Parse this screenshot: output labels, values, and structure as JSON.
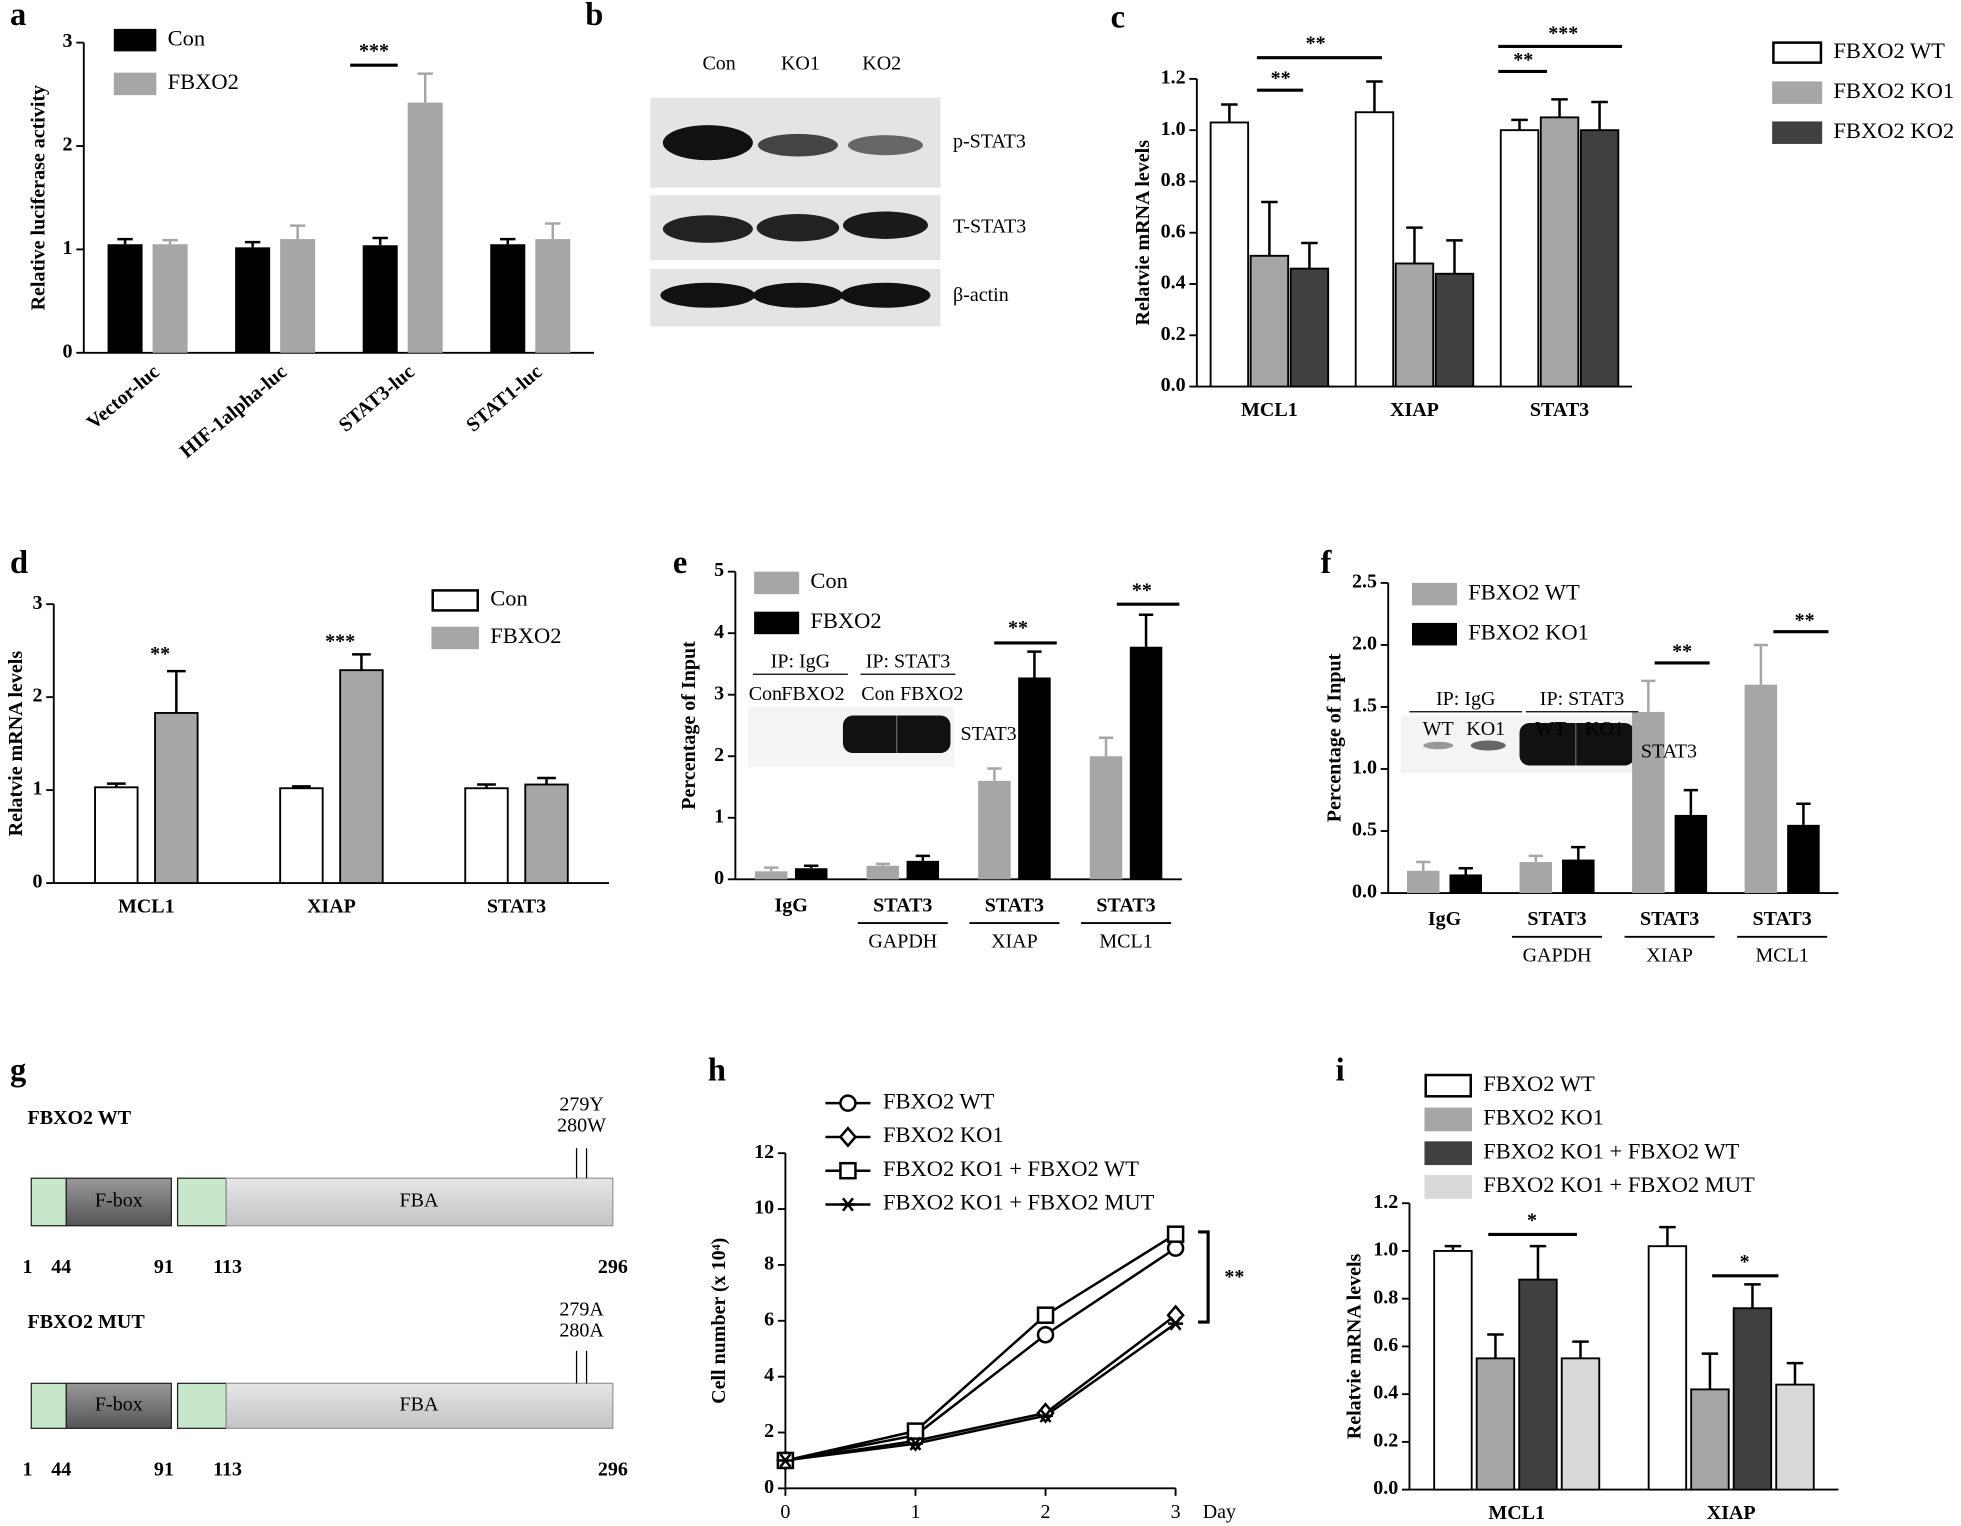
{
  "chart_data": [
    {
      "type": "bar",
      "panel": "a",
      "ylabel": "Relative luciferase activity",
      "categories": [
        "Vector-luc",
        "HIF-1alpha-luc",
        "STAT3-luc",
        "STAT1-luc"
      ],
      "series": [
        {
          "name": "Con",
          "color": "#000000",
          "values": [
            1.05,
            1.02,
            1.04,
            1.05
          ],
          "errors": [
            0.05,
            0.05,
            0.07,
            0.05
          ]
        },
        {
          "name": "FBXO2",
          "color": "#a6a6a6",
          "values": [
            1.05,
            1.1,
            2.42,
            1.1
          ],
          "errors": [
            0.04,
            0.13,
            0.28,
            0.15
          ]
        }
      ],
      "ylim": [
        0,
        3
      ],
      "yticks": [
        0,
        1,
        2,
        3
      ],
      "annotations": [
        "***"
      ]
    },
    {
      "type": "bar",
      "panel": "c",
      "ylabel": "Relatvie mRNA levels",
      "categories": [
        "MCL1",
        "XIAP",
        "STAT3"
      ],
      "series": [
        {
          "name": "FBXO2 WT",
          "color": "#ffffff",
          "values": [
            1.03,
            1.07,
            1.0
          ],
          "errors": [
            0.07,
            0.12,
            0.04
          ]
        },
        {
          "name": "FBXO2 KO1",
          "color": "#a6a6a6",
          "values": [
            0.51,
            0.48,
            1.05
          ],
          "errors": [
            0.21,
            0.14,
            0.07
          ]
        },
        {
          "name": "FBXO2 KO2",
          "color": "#404040",
          "values": [
            0.46,
            0.44,
            1.0
          ],
          "errors": [
            0.1,
            0.13,
            0.11
          ]
        }
      ],
      "ylim": [
        0,
        1.2
      ],
      "yticks": [
        {
          "value": 0,
          "label": "0.0"
        },
        0.2,
        0.4,
        0.6,
        0.8,
        {
          "value": 1,
          "label": "1.0"
        },
        1.2
      ],
      "annotations": [
        "**",
        "**",
        "**",
        "***"
      ]
    },
    {
      "type": "bar",
      "panel": "d",
      "ylabel": "Relatvie mRNA levels",
      "categories": [
        "MCL1",
        "XIAP",
        "STAT3"
      ],
      "series": [
        {
          "name": "Con",
          "color": "#ffffff",
          "values": [
            1.03,
            1.02,
            1.02
          ],
          "errors": [
            0.04,
            0.02,
            0.04
          ]
        },
        {
          "name": "FBXO2",
          "color": "#a6a6a6",
          "values": [
            1.83,
            2.29,
            1.06
          ],
          "errors": [
            0.45,
            0.17,
            0.07
          ]
        }
      ],
      "ylim": [
        0,
        3
      ],
      "yticks": [
        0,
        1,
        2,
        3
      ],
      "annotations": [
        "**",
        "***"
      ]
    },
    {
      "type": "bar",
      "panel": "e",
      "ylabel": "Percentage of Input",
      "categories": [
        "IgG",
        "STAT3",
        "STAT3",
        "STAT3"
      ],
      "sublabels": [
        null,
        "GAPDH",
        "XIAP",
        "MCL1"
      ],
      "series": [
        {
          "name": "Con",
          "color": "#a6a6a6",
          "values": [
            0.13,
            0.22,
            1.6,
            2.0
          ],
          "errors": [
            0.06,
            0.03,
            0.2,
            0.3
          ]
        },
        {
          "name": "FBXO2",
          "color": "#000000",
          "values": [
            0.18,
            0.3,
            3.28,
            3.78
          ],
          "errors": [
            0.04,
            0.08,
            0.42,
            0.52
          ]
        }
      ],
      "ylim": [
        0,
        5
      ],
      "yticks": [
        0,
        1,
        2,
        3,
        4,
        5
      ],
      "annotations": [
        "**",
        "**"
      ],
      "inset": {
        "groups": [
          "IP: IgG",
          "IP: STAT3"
        ],
        "lanes": [
          "Con",
          "FBXO2",
          "Con",
          "FBXO2"
        ],
        "band": "STAT3"
      }
    },
    {
      "type": "bar",
      "panel": "f",
      "ylabel": "Percentage of Input",
      "categories": [
        "IgG",
        "STAT3",
        "STAT3",
        "STAT3"
      ],
      "sublabels": [
        null,
        "GAPDH",
        "XIAP",
        "MCL1"
      ],
      "series": [
        {
          "name": "FBXO2 WT",
          "color": "#a6a6a6",
          "values": [
            0.18,
            0.25,
            1.46,
            1.68
          ],
          "errors": [
            0.07,
            0.05,
            0.25,
            0.32
          ]
        },
        {
          "name": "FBXO2 KO1",
          "color": "#000000",
          "values": [
            0.15,
            0.27,
            0.63,
            0.55
          ],
          "errors": [
            0.05,
            0.1,
            0.2,
            0.17
          ]
        }
      ],
      "ylim": [
        0,
        2.5
      ],
      "yticks": [
        {
          "value": 0,
          "label": "0.0"
        },
        0.5,
        {
          "value": 1,
          "label": "1.0"
        },
        1.5,
        {
          "value": 2,
          "label": "2.0"
        },
        2.5
      ],
      "annotations": [
        "**",
        "**"
      ],
      "inset": {
        "groups": [
          "IP: IgG",
          "IP: STAT3"
        ],
        "lanes": [
          "WT",
          "KO1",
          "WT",
          "KO1"
        ],
        "band": "STAT3"
      }
    },
    {
      "type": "line",
      "panel": "h",
      "ylabel": "Cell number (x 10⁴)",
      "xlabel": "Day",
      "x": [
        0,
        1,
        2,
        3
      ],
      "series": [
        {
          "name": "FBXO2 WT",
          "marker": "circle",
          "color": "#000000",
          "values": [
            1.0,
            1.9,
            5.5,
            8.6
          ]
        },
        {
          "name": "FBXO2 KO1",
          "marker": "diamond",
          "color": "#000000",
          "values": [
            1.0,
            1.7,
            2.7,
            6.2
          ]
        },
        {
          "name": "FBXO2 KO1 + FBXO2 WT",
          "marker": "square",
          "color": "#000000",
          "values": [
            1.0,
            2.05,
            6.2,
            9.1
          ]
        },
        {
          "name": "FBXO2 KO1 + FBXO2 MUT",
          "marker": "star",
          "color": "#000000",
          "values": [
            1.0,
            1.6,
            2.6,
            5.9
          ]
        }
      ],
      "xlim": [
        0,
        3
      ],
      "xticks": [
        0,
        1,
        2,
        3
      ],
      "ylim": [
        0,
        12
      ],
      "yticks": [
        0,
        2,
        4,
        6,
        8,
        10,
        12
      ],
      "annotations": [
        "**"
      ]
    },
    {
      "type": "bar",
      "panel": "i",
      "ylabel": "Relatvie mRNA levels",
      "categories": [
        "MCL1",
        "XIAP"
      ],
      "series": [
        {
          "name": "FBXO2 WT",
          "color": "#ffffff",
          "values": [
            1.0,
            1.02
          ],
          "errors": [
            0.02,
            0.08
          ]
        },
        {
          "name": "FBXO2 KO1",
          "color": "#a6a6a6",
          "values": [
            0.55,
            0.42
          ],
          "errors": [
            0.1,
            0.15
          ]
        },
        {
          "name": "FBXO2 KO1 + FBXO2 WT",
          "color": "#404040",
          "values": [
            0.88,
            0.76
          ],
          "errors": [
            0.14,
            0.1
          ]
        },
        {
          "name": "FBXO2 KO1 + FBXO2 MUT",
          "color": "#d9d9d9",
          "values": [
            0.55,
            0.44
          ],
          "errors": [
            0.07,
            0.09
          ]
        }
      ],
      "ylim": [
        0,
        1.2
      ],
      "yticks": [
        {
          "value": 0,
          "label": "0.0"
        },
        0.2,
        0.4,
        0.6,
        0.8,
        {
          "value": 1,
          "label": "1.0"
        },
        1.2
      ],
      "annotations": [
        "*",
        "*"
      ]
    }
  ],
  "blot_b": {
    "panel": "b",
    "lanes": [
      "Con",
      "KO1",
      "KO2"
    ],
    "bands": [
      "p-STAT3",
      "T-STAT3",
      "β-actin"
    ]
  },
  "diagram_g": {
    "panel": "g",
    "constructs": [
      {
        "name": "FBXO2 WT",
        "domains": [
          "F-box",
          "FBA"
        ],
        "positions": [
          "1",
          "44",
          "91",
          "113",
          "296"
        ],
        "sites": [
          "279Y",
          "280W"
        ]
      },
      {
        "name": "FBXO2 MUT",
        "domains": [
          "F-box",
          "FBA"
        ],
        "positions": [
          "1",
          "44",
          "91",
          "113",
          "296"
        ],
        "sites": [
          "279A",
          "280A"
        ]
      }
    ]
  }
}
